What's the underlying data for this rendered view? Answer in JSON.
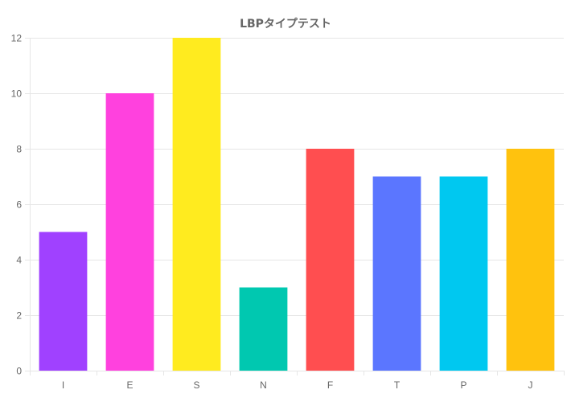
{
  "chart_data": {
    "type": "bar",
    "title": "LBPタイプテスト",
    "categories": [
      "I",
      "E",
      "S",
      "N",
      "F",
      "T",
      "P",
      "J"
    ],
    "values": [
      5,
      10,
      12,
      3,
      8,
      7,
      7,
      8
    ],
    "colors": [
      "#a041ff",
      "#ff41de",
      "#ffeb1f",
      "#00c8b0",
      "#ff4e50",
      "#5b76ff",
      "#00c8f0",
      "#ffc20e"
    ],
    "xlabel": "",
    "ylabel": "",
    "ylim": [
      0,
      12
    ],
    "yticks": [
      0,
      2,
      4,
      6,
      8,
      10,
      12
    ],
    "grid": true,
    "legend": "none"
  }
}
